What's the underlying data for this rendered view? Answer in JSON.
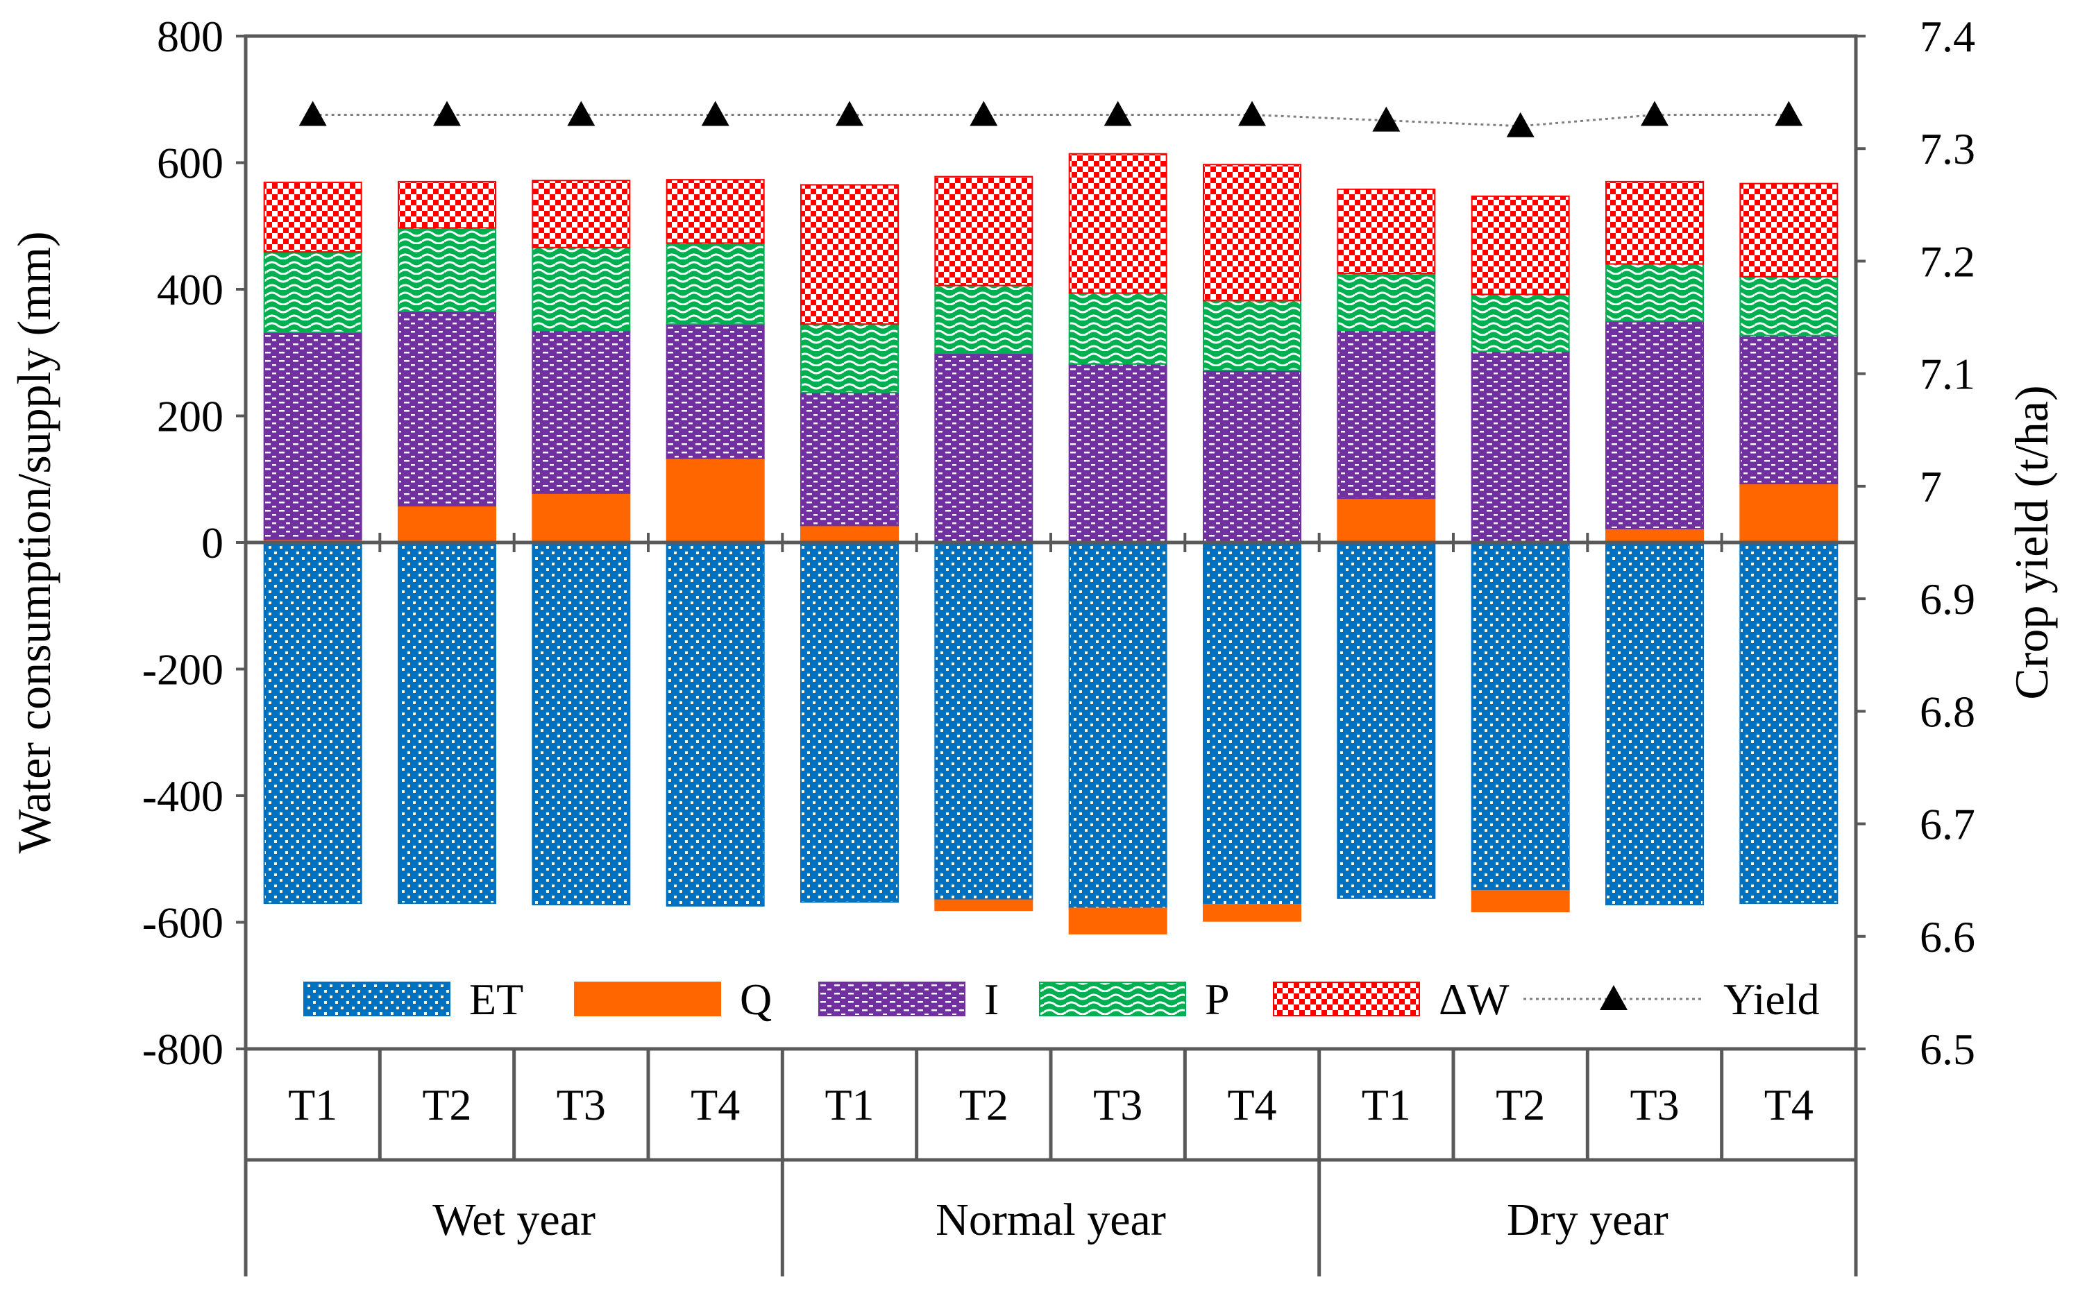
{
  "chart_data": {
    "type": "bar",
    "subtype": "stacked-bar-with-line",
    "title": "",
    "ylabel": "Water consumption/supply (mm)",
    "y2label": "Crop yield (t/ha)",
    "ylim": [
      -800,
      800
    ],
    "yticks": [
      800,
      600,
      400,
      200,
      0,
      -200,
      -400,
      -600,
      -800
    ],
    "y2lim": [
      6.5,
      7.4
    ],
    "y2ticks": [
      "7.4",
      "7.3",
      "7.2",
      "7.1",
      "7",
      "6.9",
      "6.8",
      "6.7",
      "6.6",
      "6.5"
    ],
    "grid": false,
    "legend_position": "bottom-inside",
    "groups": [
      {
        "name": "Wet year",
        "categories": [
          "T1",
          "T2",
          "T3",
          "T4"
        ]
      },
      {
        "name": "Normal year",
        "categories": [
          "T1",
          "T2",
          "T3",
          "T4"
        ]
      },
      {
        "name": "Dry year",
        "categories": [
          "T1",
          "T2",
          "T3",
          "T4"
        ]
      }
    ],
    "series": [
      {
        "name": "ET",
        "color": "#0070C0",
        "pattern": "dots",
        "values": [
          -570,
          -570,
          -572,
          -574,
          -568,
          -565,
          -578,
          -572,
          -562,
          -550,
          -572,
          -570
        ]
      },
      {
        "name": "Q",
        "color": "#FF6600",
        "pattern": "solid",
        "values": [
          5,
          58,
          78,
          133,
          27,
          -16,
          -40,
          -26,
          70,
          -33,
          22,
          93
        ]
      },
      {
        "name": "I",
        "color": "#7030A0",
        "pattern": "dashes",
        "values": [
          327,
          307,
          257,
          212,
          210,
          299,
          282,
          272,
          265,
          302,
          328,
          234
        ]
      },
      {
        "name": "P",
        "color": "#00B050",
        "pattern": "waves",
        "values": [
          127,
          132,
          131,
          128,
          108,
          107,
          112,
          110,
          90,
          90,
          90,
          93
        ]
      },
      {
        "name": "ΔW",
        "color": "#FF0000",
        "pattern": "checker",
        "values": [
          110,
          73,
          106,
          100,
          220,
          172,
          220,
          215,
          133,
          155,
          130,
          147
        ]
      }
    ],
    "line_series": {
      "name": "Yield",
      "axis": "right",
      "marker": "triangle",
      "values": [
        7.33,
        7.33,
        7.33,
        7.33,
        7.33,
        7.33,
        7.33,
        7.33,
        7.325,
        7.32,
        7.33,
        7.33
      ]
    }
  }
}
